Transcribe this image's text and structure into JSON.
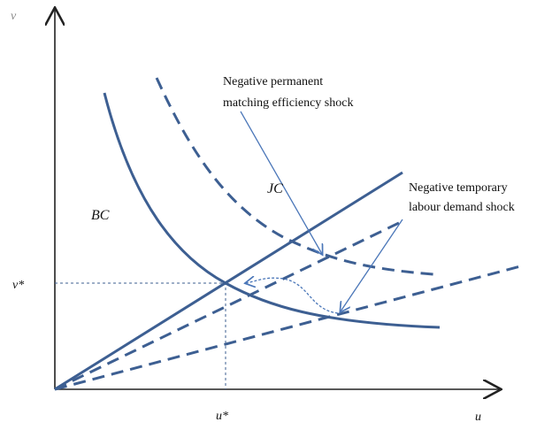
{
  "axes": {
    "y_label": "v",
    "x_label": "u",
    "y_star": "v*",
    "x_star": "u*"
  },
  "curves": {
    "bc": "BC",
    "jc": "JC"
  },
  "annotations": [
    {
      "lines": [
        "Negative permanent",
        "matching efficiency shock"
      ]
    },
    {
      "lines": [
        "Negative temporary",
        "labour demand shock"
      ]
    }
  ]
}
